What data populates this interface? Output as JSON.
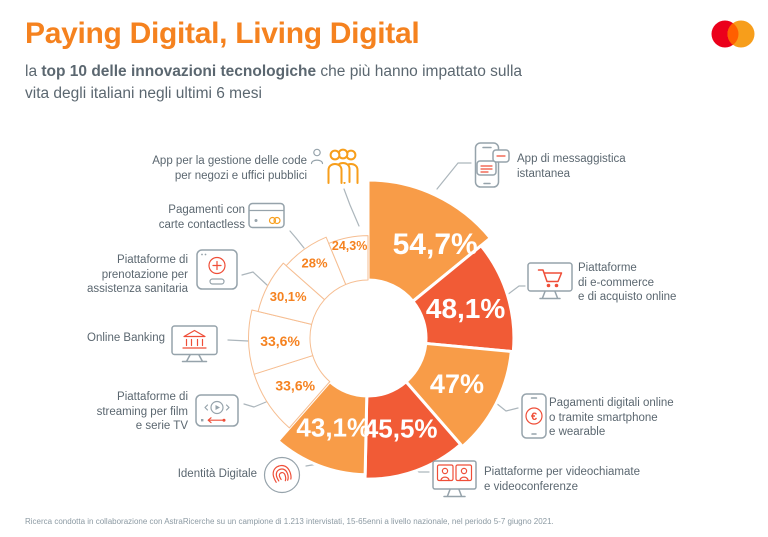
{
  "header": {
    "title": "Paying Digital, Living Digital",
    "subtitle_prefix": "la ",
    "subtitle_bold": "top 10 delle innovazioni tecnologiche",
    "subtitle_rest": " che più hanno impattato sulla vita degli italiani negli ultimi 6 mesi",
    "logo": "mastercard-logo"
  },
  "chart_data": {
    "type": "pie",
    "variant": "rose-donut",
    "title": "Paying Digital, Living Digital",
    "unit": "%",
    "start_angle_deg": 0,
    "direction": "clockwise",
    "legend": "none",
    "items": [
      {
        "label": "App di messaggistica istantanea",
        "label_lines": [
          "App di messaggistica",
          "istantanea"
        ],
        "value": 54.7,
        "display": "54,7%",
        "style": "filled-orange",
        "icon": "smartphone-chat-icon"
      },
      {
        "label": "Piattaforme di e-commerce e di acquisto online",
        "label_lines": [
          "Piattaforme",
          "di e-commerce",
          "e di acquisto online"
        ],
        "value": 48.1,
        "display": "48,1%",
        "style": "filled-red",
        "icon": "ecommerce-monitor-cart-icon"
      },
      {
        "label": "Pagamenti digitali online o tramite smartphone e wearable",
        "label_lines": [
          "Pagamenti digitali online",
          "o tramite smartphone",
          "e wearable"
        ],
        "value": 47,
        "display": "47%",
        "style": "filled-orange",
        "icon": "smartphone-euro-icon"
      },
      {
        "label": "Piattaforme per videochiamate e videoconferenze",
        "label_lines": [
          "Piattaforme per videochiamate",
          "e videoconferenze"
        ],
        "value": 45.5,
        "display": "45,5%",
        "style": "filled-red",
        "icon": "videocall-monitor-icon"
      },
      {
        "label": "Identità Digitale",
        "label_lines": [
          "Identità Digitale"
        ],
        "value": 43.1,
        "display": "43,1%",
        "style": "filled-orange",
        "icon": "fingerprint-icon"
      },
      {
        "label": "Piattaforme di streaming per film e serie TV",
        "label_lines": [
          "Piattaforme di",
          "streaming per film",
          "e serie TV"
        ],
        "value": 33.6,
        "display": "33,6%",
        "style": "outline",
        "icon": "streaming-player-icon"
      },
      {
        "label": "Online Banking",
        "label_lines": [
          "Online Banking"
        ],
        "value": 33.6,
        "display": "33,6%",
        "style": "outline",
        "icon": "online-banking-monitor-icon"
      },
      {
        "label": "Piattaforme di prenotazione per assistenza sanitaria",
        "label_lines": [
          "Piattaforme di",
          "prenotazione per",
          "assistenza sanitaria"
        ],
        "value": 30.1,
        "display": "30,1%",
        "style": "outline",
        "icon": "health-booking-icon"
      },
      {
        "label": "Pagamenti con carte contactless",
        "label_lines": [
          "Pagamenti con",
          "carte contactless"
        ],
        "value": 28,
        "display": "28%",
        "style": "outline",
        "icon": "contactless-card-icon"
      },
      {
        "label": "App per la gestione delle code per negozi e uffici pubblici",
        "label_lines": [
          "App per la gestione delle code",
          "per negozi e uffici pubblici"
        ],
        "value": 24.3,
        "display": "24,3%",
        "style": "outline",
        "icon": "queue-people-icon"
      }
    ],
    "colors": {
      "orange": "#F89C48",
      "red": "#F15B36",
      "outline_stroke": "#F6BE92",
      "outline_label": "#F58220",
      "filled_label": "#FFFFFF",
      "connector": "#ACB6BC"
    }
  },
  "footer": {
    "note": "Ricerca condotta in collaborazione con AstraRicerche su un campione di 1.213 intervistati, 15-65enni a livello nazionale, nel periodo 5-7 giugno 2021."
  }
}
